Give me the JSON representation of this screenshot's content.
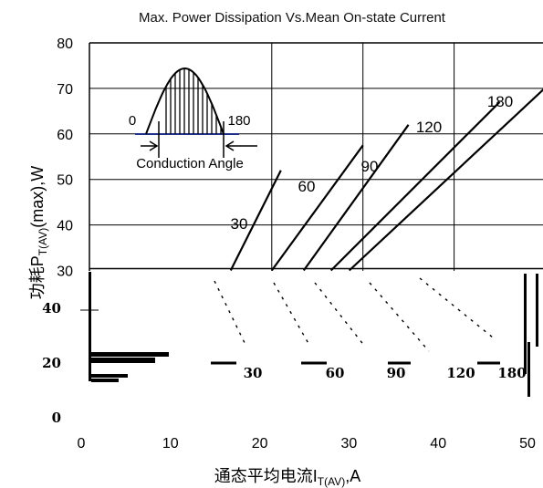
{
  "chart_data": {
    "type": "line",
    "title": "Max. Power Dissipation Vs.Mean On-state Current",
    "xlabel": "通态平均电流I",
    "xlabel_sub": "T(AV)",
    "xlabel_tail": ",A",
    "ylabel": "功耗P",
    "ylabel_sub": "T(AV)",
    "ylabel_tail": "(max),W",
    "xlim": [
      0,
      50
    ],
    "ylim": [
      0,
      80
    ],
    "x_ticks": [
      "0",
      "10",
      "20",
      "30",
      "40",
      "50"
    ],
    "y_ticks_upper": [
      "30",
      "40",
      "50",
      "60",
      "70",
      "80"
    ],
    "y_ticks_lower": [
      "0",
      "20",
      "40"
    ],
    "grid": true,
    "series": [
      {
        "name": "30",
        "points": [
          [
            15.5,
            30
          ],
          [
            21,
            52
          ]
        ]
      },
      {
        "name": "60",
        "points": [
          [
            20,
            30
          ],
          [
            30,
            57.5
          ]
        ]
      },
      {
        "name": "90",
        "points": [
          [
            23.5,
            30
          ],
          [
            35,
            62
          ]
        ]
      },
      {
        "name": "120",
        "points": [
          [
            26.5,
            30
          ],
          [
            45,
            67
          ]
        ]
      },
      {
        "name": "180",
        "points": [
          [
            28.5,
            30
          ],
          [
            51,
            72
          ]
        ]
      }
    ],
    "inset": {
      "label_start": "0",
      "label_end": "180",
      "caption": "Conduction Angle"
    }
  }
}
